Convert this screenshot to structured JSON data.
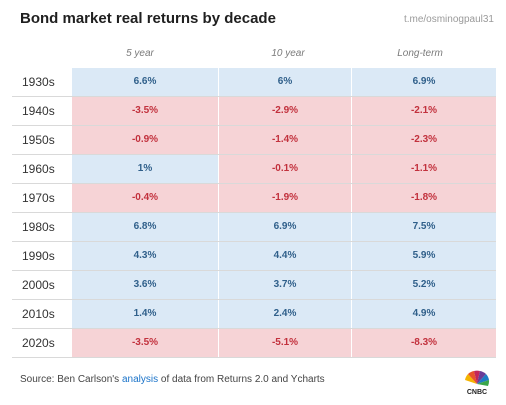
{
  "header": {
    "title": "Bond market real returns by decade",
    "watermark": "t.me/osminogpaul31"
  },
  "chart_data": {
    "type": "table",
    "title": "Bond market real returns by decade",
    "columns": [
      "5 year",
      "10 year",
      "Long-term"
    ],
    "rows": [
      {
        "label": "1930s",
        "values": [
          "6.6%",
          "6%",
          "6.9%"
        ]
      },
      {
        "label": "1940s",
        "values": [
          "-3.5%",
          "-2.9%",
          "-2.1%"
        ]
      },
      {
        "label": "1950s",
        "values": [
          "-0.9%",
          "-1.4%",
          "-2.3%"
        ]
      },
      {
        "label": "1960s",
        "values": [
          "1%",
          "-0.1%",
          "-1.1%"
        ]
      },
      {
        "label": "1970s",
        "values": [
          "-0.4%",
          "-1.9%",
          "-1.8%"
        ]
      },
      {
        "label": "1980s",
        "values": [
          "6.8%",
          "6.9%",
          "7.5%"
        ]
      },
      {
        "label": "1990s",
        "values": [
          "4.3%",
          "4.4%",
          "5.9%"
        ]
      },
      {
        "label": "2000s",
        "values": [
          "3.6%",
          "3.7%",
          "5.2%"
        ]
      },
      {
        "label": "2010s",
        "values": [
          "1.4%",
          "2.4%",
          "4.9%"
        ]
      },
      {
        "label": "2020s",
        "values": [
          "-3.5%",
          "-5.1%",
          "-8.3%"
        ]
      }
    ],
    "colors": {
      "positive_bg": "#dbe9f6",
      "negative_bg": "#f6d3d6",
      "positive_text": "#2f5f8a",
      "negative_text": "#c2313d"
    }
  },
  "footer": {
    "source_prefix": "Source: Ben Carlson's ",
    "source_link": "analysis",
    "source_suffix": " of data from Returns 2.0 and Ycharts",
    "logo_text": "CNBC",
    "logo_icon": "cnbc-peacock-icon"
  }
}
